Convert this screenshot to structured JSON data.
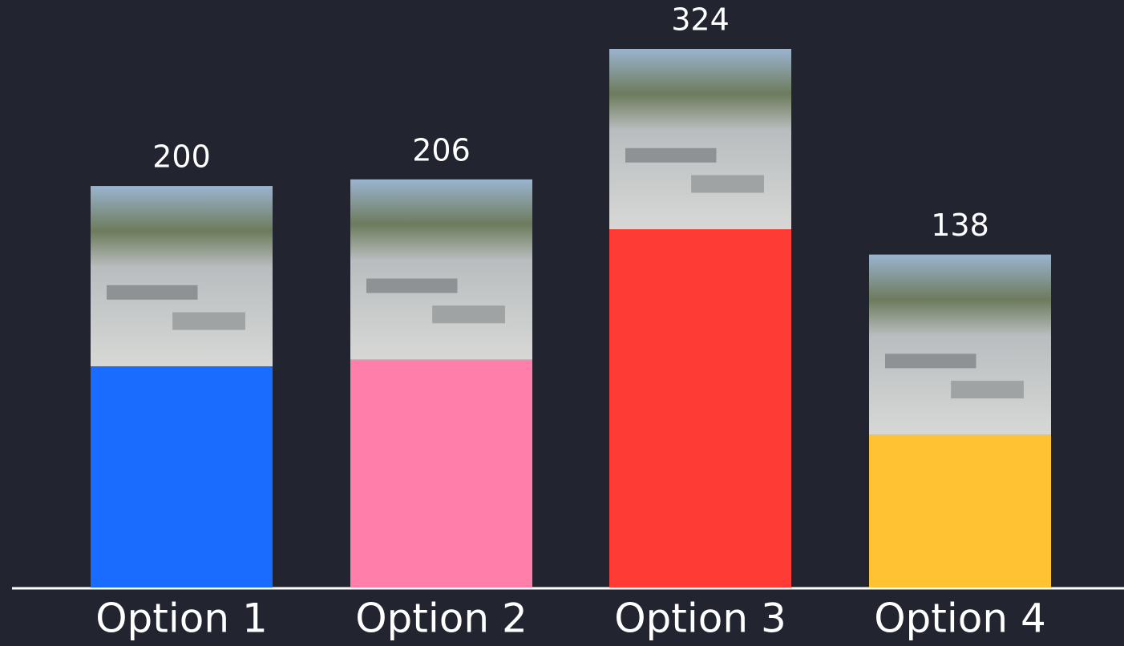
{
  "chart_data": {
    "type": "bar",
    "categories": [
      "Option 1",
      "Option 2",
      "Option 3",
      "Option 4"
    ],
    "values": [
      200,
      206,
      324,
      138
    ],
    "colors": [
      "#1a6bff",
      "#ff7eaa",
      "#ff3b36",
      "#ffc233"
    ]
  }
}
